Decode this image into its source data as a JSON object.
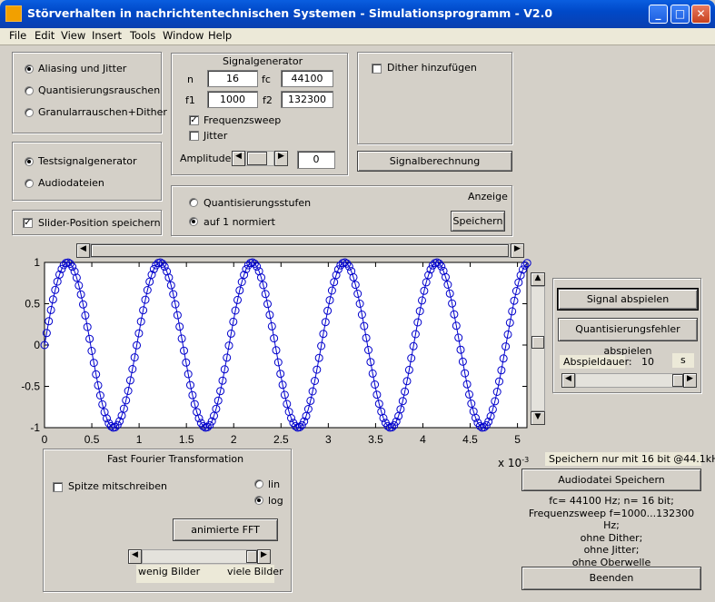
{
  "window": {
    "title": "Störverhalten in nachrichtentechnischen Systemen - Simulationsprogramm - V2.0",
    "minimize": "_",
    "maximize": "□",
    "close": "✕"
  },
  "menu": [
    "File",
    "Edit",
    "View",
    "Insert",
    "Tools",
    "Window",
    "Help"
  ],
  "mode_panel": {
    "options": [
      "Aliasing und Jitter",
      "Quantisierungsrauschen",
      "Granularrauschen+Dither"
    ],
    "selected": 0
  },
  "source_panel": {
    "options": [
      "Testsignalgenerator",
      "Audiodateien"
    ],
    "selected": 0
  },
  "slider_position": {
    "label": "Slider-Position speichern",
    "checked": true
  },
  "signalgenerator": {
    "title": "Signalgenerator",
    "n_label": "n",
    "n_value": "16",
    "fc_label": "fc",
    "fc_value": "44100",
    "f1_label": "f1",
    "f1_value": "1000",
    "f2_label": "f2",
    "f2_value": "132300",
    "frequenzsweep": {
      "label": "Frequenzsweep",
      "checked": true
    },
    "jitter": {
      "label": "Jitter",
      "checked": false
    },
    "amplitude_label": "Amplitude",
    "amplitude_value": "0"
  },
  "dither": {
    "label": "Dither hinzufügen",
    "checked": false
  },
  "signalberechnung_button": "Signalberechnung",
  "anzeige": {
    "title": "Anzeige",
    "options": [
      "Quantisierungsstufen",
      "auf 1 normiert"
    ],
    "selected": 1,
    "save_button": "Speichern"
  },
  "playback": {
    "play_signal": "Signal abspielen",
    "play_error": "Quantisierungsfehler abspielen",
    "duration_label": "Abspieldauer:",
    "duration_value": "10",
    "duration_unit": "s"
  },
  "chart_data": {
    "type": "scatter",
    "title": "",
    "xlabel": "",
    "ylabel": "",
    "x_multiplier": "x 10^-3",
    "x_multiplier_label": "x 10",
    "x_multiplier_exp": "-3",
    "xlim": [
      0,
      5.1
    ],
    "ylim": [
      -1,
      1
    ],
    "xticks": [
      "0",
      "0.5",
      "1",
      "1.5",
      "2",
      "2.5",
      "3",
      "3.5",
      "4",
      "4.5",
      "5"
    ],
    "yticks": [
      "1",
      "0.5",
      "0",
      "-0.5",
      "-1"
    ],
    "sample_rate_hz": 44100,
    "signal_frequency_hz": 1025,
    "samples": 226,
    "marker": "circle",
    "color": "#0000cc"
  },
  "fft": {
    "title": "Fast Fourier Transformation",
    "peak": {
      "label": "Spitze mitschreiben",
      "checked": false
    },
    "scale_options": [
      "lin",
      "log"
    ],
    "scale_selected": 1,
    "animate_button": "animierte FFT",
    "slider_left_label": "wenig Bilder",
    "slider_right_label": "viele Bilder"
  },
  "save_panel": {
    "note": "Speichern nur mit 16 bit @44.1kHz",
    "save_button": "Audiodatei Speichern",
    "info_lines": [
      "fc= 44100 Hz; n= 16 bit;",
      "Frequenzsweep f=1000...132300 Hz;",
      "ohne Dither;",
      "ohne Jitter;",
      "ohne Oberwelle"
    ]
  },
  "exit_button": "Beenden",
  "colors": {
    "titlebar": "#0054e3",
    "plot_line": "#0000cc",
    "face": "#d4d0c8"
  }
}
